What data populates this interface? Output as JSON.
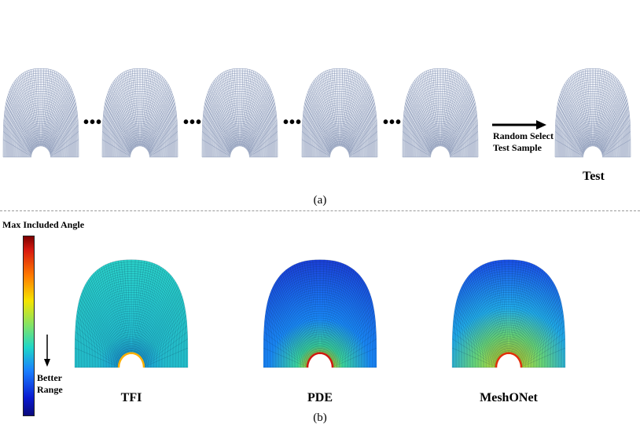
{
  "panel_a": {
    "ellipsis": [
      "•••",
      "•••",
      "•••",
      "•••"
    ],
    "arrow_label_line1": "Random Select",
    "arrow_label_line2": "Test Sample",
    "test_label": "Test",
    "caption": "(a)"
  },
  "panel_b": {
    "colorbar_title": "Max Included Angle",
    "colorbar_note_line1": "Better",
    "colorbar_note_line2": "Range",
    "methods": [
      "TFI",
      "PDE",
      "MeshONet"
    ],
    "caption": "(b)"
  },
  "colors": {
    "mesh_line": "#7f8fb0",
    "mesh_fill": "#eef1f7",
    "colormap": [
      "#7a0000",
      "#d81a10",
      "#ff7a00",
      "#f5e400",
      "#7fe36a",
      "#1fd6c8",
      "#1a7fff",
      "#0a1ad0",
      "#0a0a7a"
    ]
  }
}
